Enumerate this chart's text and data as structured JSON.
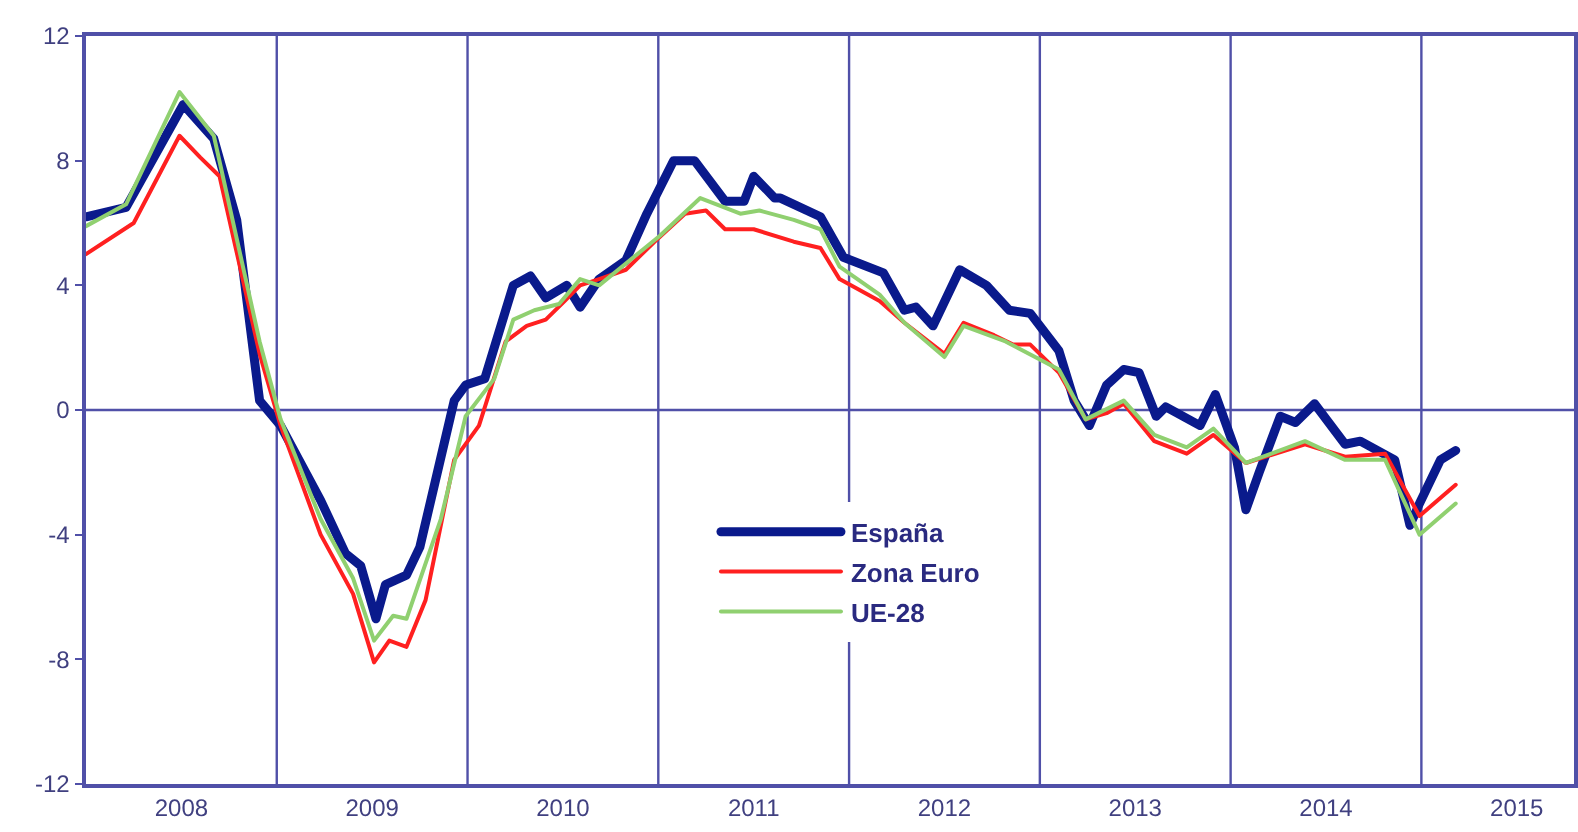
{
  "chart_data": {
    "type": "line",
    "xlim": [
      2008,
      2015.8
    ],
    "xticks": [
      {
        "value": 2008.5,
        "label": "2008"
      },
      {
        "value": 2009,
        "label": null
      },
      {
        "value": 2009.5,
        "label": "2009"
      },
      {
        "value": 2010,
        "label": null
      },
      {
        "value": 2010.5,
        "label": "2010"
      },
      {
        "value": 2011,
        "label": null
      },
      {
        "value": 2011.5,
        "label": "2011"
      },
      {
        "value": 2012,
        "label": null
      },
      {
        "value": 2012.5,
        "label": "2012"
      },
      {
        "value": 2013,
        "label": null
      },
      {
        "value": 2013.5,
        "label": "2013"
      },
      {
        "value": 2014,
        "label": null
      },
      {
        "value": 2014.5,
        "label": "2014"
      },
      {
        "value": 2015,
        "label": null
      },
      {
        "value": 2015.5,
        "label": "2015"
      }
    ],
    "ylim": [
      -12,
      12
    ],
    "yticks": [
      -12,
      -8,
      -4,
      0,
      4,
      8,
      12
    ],
    "grid": "x",
    "legend": "bottom",
    "marker": "none",
    "line_style": "solid",
    "ref_lines": [
      {
        "axis": "y",
        "value": 0
      }
    ],
    "series": [
      {
        "name": "España",
        "color": "#0a1a8c",
        "x": [
          2008,
          2008.21,
          2008.51,
          2008.67,
          2008.79,
          2008.91,
          2009.02,
          2009.23,
          2009.36,
          2009.44,
          2009.52,
          2009.57,
          2009.68,
          2009.75,
          2009.93,
          2009.99,
          2010.09,
          2010.24,
          2010.33,
          2010.41,
          2010.52,
          2010.59,
          2010.69,
          2010.83,
          2010.94,
          2011.08,
          2011.19,
          2011.35,
          2011.45,
          2011.5,
          2011.61,
          2011.64,
          2011.85,
          2011.97,
          2012.18,
          2012.29,
          2012.35,
          2012.44,
          2012.58,
          2012.72,
          2012.84,
          2012.95,
          2013.1,
          2013.18,
          2013.26,
          2013.35,
          2013.44,
          2013.52,
          2013.61,
          2013.66,
          2013.84,
          2013.92,
          2014.02,
          2014.08,
          2014.15,
          2014.26,
          2014.34,
          2014.44,
          2014.6,
          2014.68,
          2014.86,
          2014.94,
          2014.99,
          2015.1,
          2015.18
        ],
        "values": [
          6.2,
          6.5,
          9.8,
          8.7,
          6.1,
          0.3,
          -0.5,
          -2.9,
          -4.6,
          -5.0,
          -6.7,
          -5.6,
          -5.3,
          -4.4,
          0.3,
          0.8,
          1.0,
          4.0,
          4.3,
          3.6,
          4.0,
          3.3,
          4.2,
          4.8,
          6.3,
          8.0,
          8.0,
          6.7,
          6.7,
          7.5,
          6.8,
          6.8,
          6.2,
          4.9,
          4.4,
          3.2,
          3.3,
          2.7,
          4.5,
          4.0,
          3.2,
          3.1,
          1.9,
          0.3,
          -0.5,
          0.8,
          1.3,
          1.2,
          -0.2,
          0.1,
          -0.5,
          0.5,
          -1.2,
          -3.2,
          -2.0,
          -0.2,
          -0.4,
          0.2,
          -1.1,
          -1.0,
          -1.6,
          -3.7,
          -3.0,
          -1.6,
          -1.3
        ]
      },
      {
        "name": "Zona Euro",
        "color": "#ff2020",
        "x": [
          2008,
          2008.25,
          2008.49,
          2008.6,
          2008.7,
          2008.91,
          2009.02,
          2009.23,
          2009.4,
          2009.51,
          2009.59,
          2009.68,
          2009.78,
          2009.93,
          2010.06,
          2010.2,
          2010.31,
          2010.41,
          2010.51,
          2010.59,
          2010.69,
          2010.83,
          2010.98,
          2011.14,
          2011.25,
          2011.35,
          2011.5,
          2011.71,
          2011.85,
          2011.95,
          2012.16,
          2012.29,
          2012.5,
          2012.6,
          2012.76,
          2012.86,
          2012.95,
          2013.1,
          2013.24,
          2013.35,
          2013.44,
          2013.6,
          2013.77,
          2013.91,
          2014.08,
          2014.39,
          2014.6,
          2014.81,
          2014.99,
          2015.18
        ],
        "values": [
          5.0,
          6.0,
          8.8,
          8.1,
          7.5,
          1.8,
          -0.5,
          -4.0,
          -5.9,
          -8.1,
          -7.4,
          -7.6,
          -6.1,
          -1.6,
          -0.5,
          2.2,
          2.7,
          2.9,
          3.5,
          4.0,
          4.2,
          4.5,
          5.4,
          6.3,
          6.4,
          5.8,
          5.8,
          5.4,
          5.2,
          4.2,
          3.5,
          2.8,
          1.8,
          2.8,
          2.4,
          2.1,
          2.1,
          1.2,
          -0.3,
          -0.1,
          0.2,
          -1.0,
          -1.4,
          -0.8,
          -1.7,
          -1.1,
          -1.5,
          -1.4,
          -3.4,
          -2.4
        ]
      },
      {
        "name": "UE-28",
        "color": "#90d070",
        "x": [
          2008,
          2008.21,
          2008.49,
          2008.67,
          2008.91,
          2009.02,
          2009.23,
          2009.4,
          2009.51,
          2009.61,
          2009.68,
          2009.86,
          2009.99,
          2010.14,
          2010.24,
          2010.35,
          2010.48,
          2010.59,
          2010.69,
          2010.83,
          2011.01,
          2011.22,
          2011.43,
          2011.53,
          2011.71,
          2011.85,
          2011.95,
          2012.16,
          2012.29,
          2012.5,
          2012.6,
          2012.82,
          2013.1,
          2013.24,
          2013.44,
          2013.6,
          2013.77,
          2013.91,
          2014.08,
          2014.39,
          2014.6,
          2014.81,
          2014.99,
          2015.18
        ],
        "values": [
          5.9,
          6.6,
          10.2,
          8.8,
          2.2,
          -0.3,
          -3.5,
          -5.4,
          -7.4,
          -6.6,
          -6.7,
          -3.5,
          -0.2,
          1.0,
          2.9,
          3.2,
          3.4,
          4.2,
          4.0,
          4.7,
          5.6,
          6.8,
          6.3,
          6.4,
          6.1,
          5.8,
          4.6,
          3.7,
          2.8,
          1.7,
          2.7,
          2.2,
          1.3,
          -0.3,
          0.3,
          -0.8,
          -1.2,
          -0.6,
          -1.7,
          -1.0,
          -1.6,
          -1.6,
          -4.0,
          -3.0
        ]
      }
    ]
  }
}
